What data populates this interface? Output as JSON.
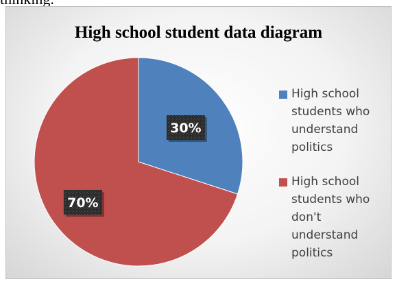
{
  "chart_data": {
    "type": "pie",
    "title": "High school student data diagram",
    "slices": [
      {
        "label": "High school students who understand politics",
        "value": 30,
        "value_label": "30%",
        "color": "#4f81bd"
      },
      {
        "label": "High school students who don't understand politics",
        "value": 70,
        "value_label": "70%",
        "color": "#c0504d"
      }
    ],
    "legend_position": "right",
    "data_label_style": "dark-textured-box"
  },
  "page_text": {
    "cropped_top_text": "thinking."
  }
}
